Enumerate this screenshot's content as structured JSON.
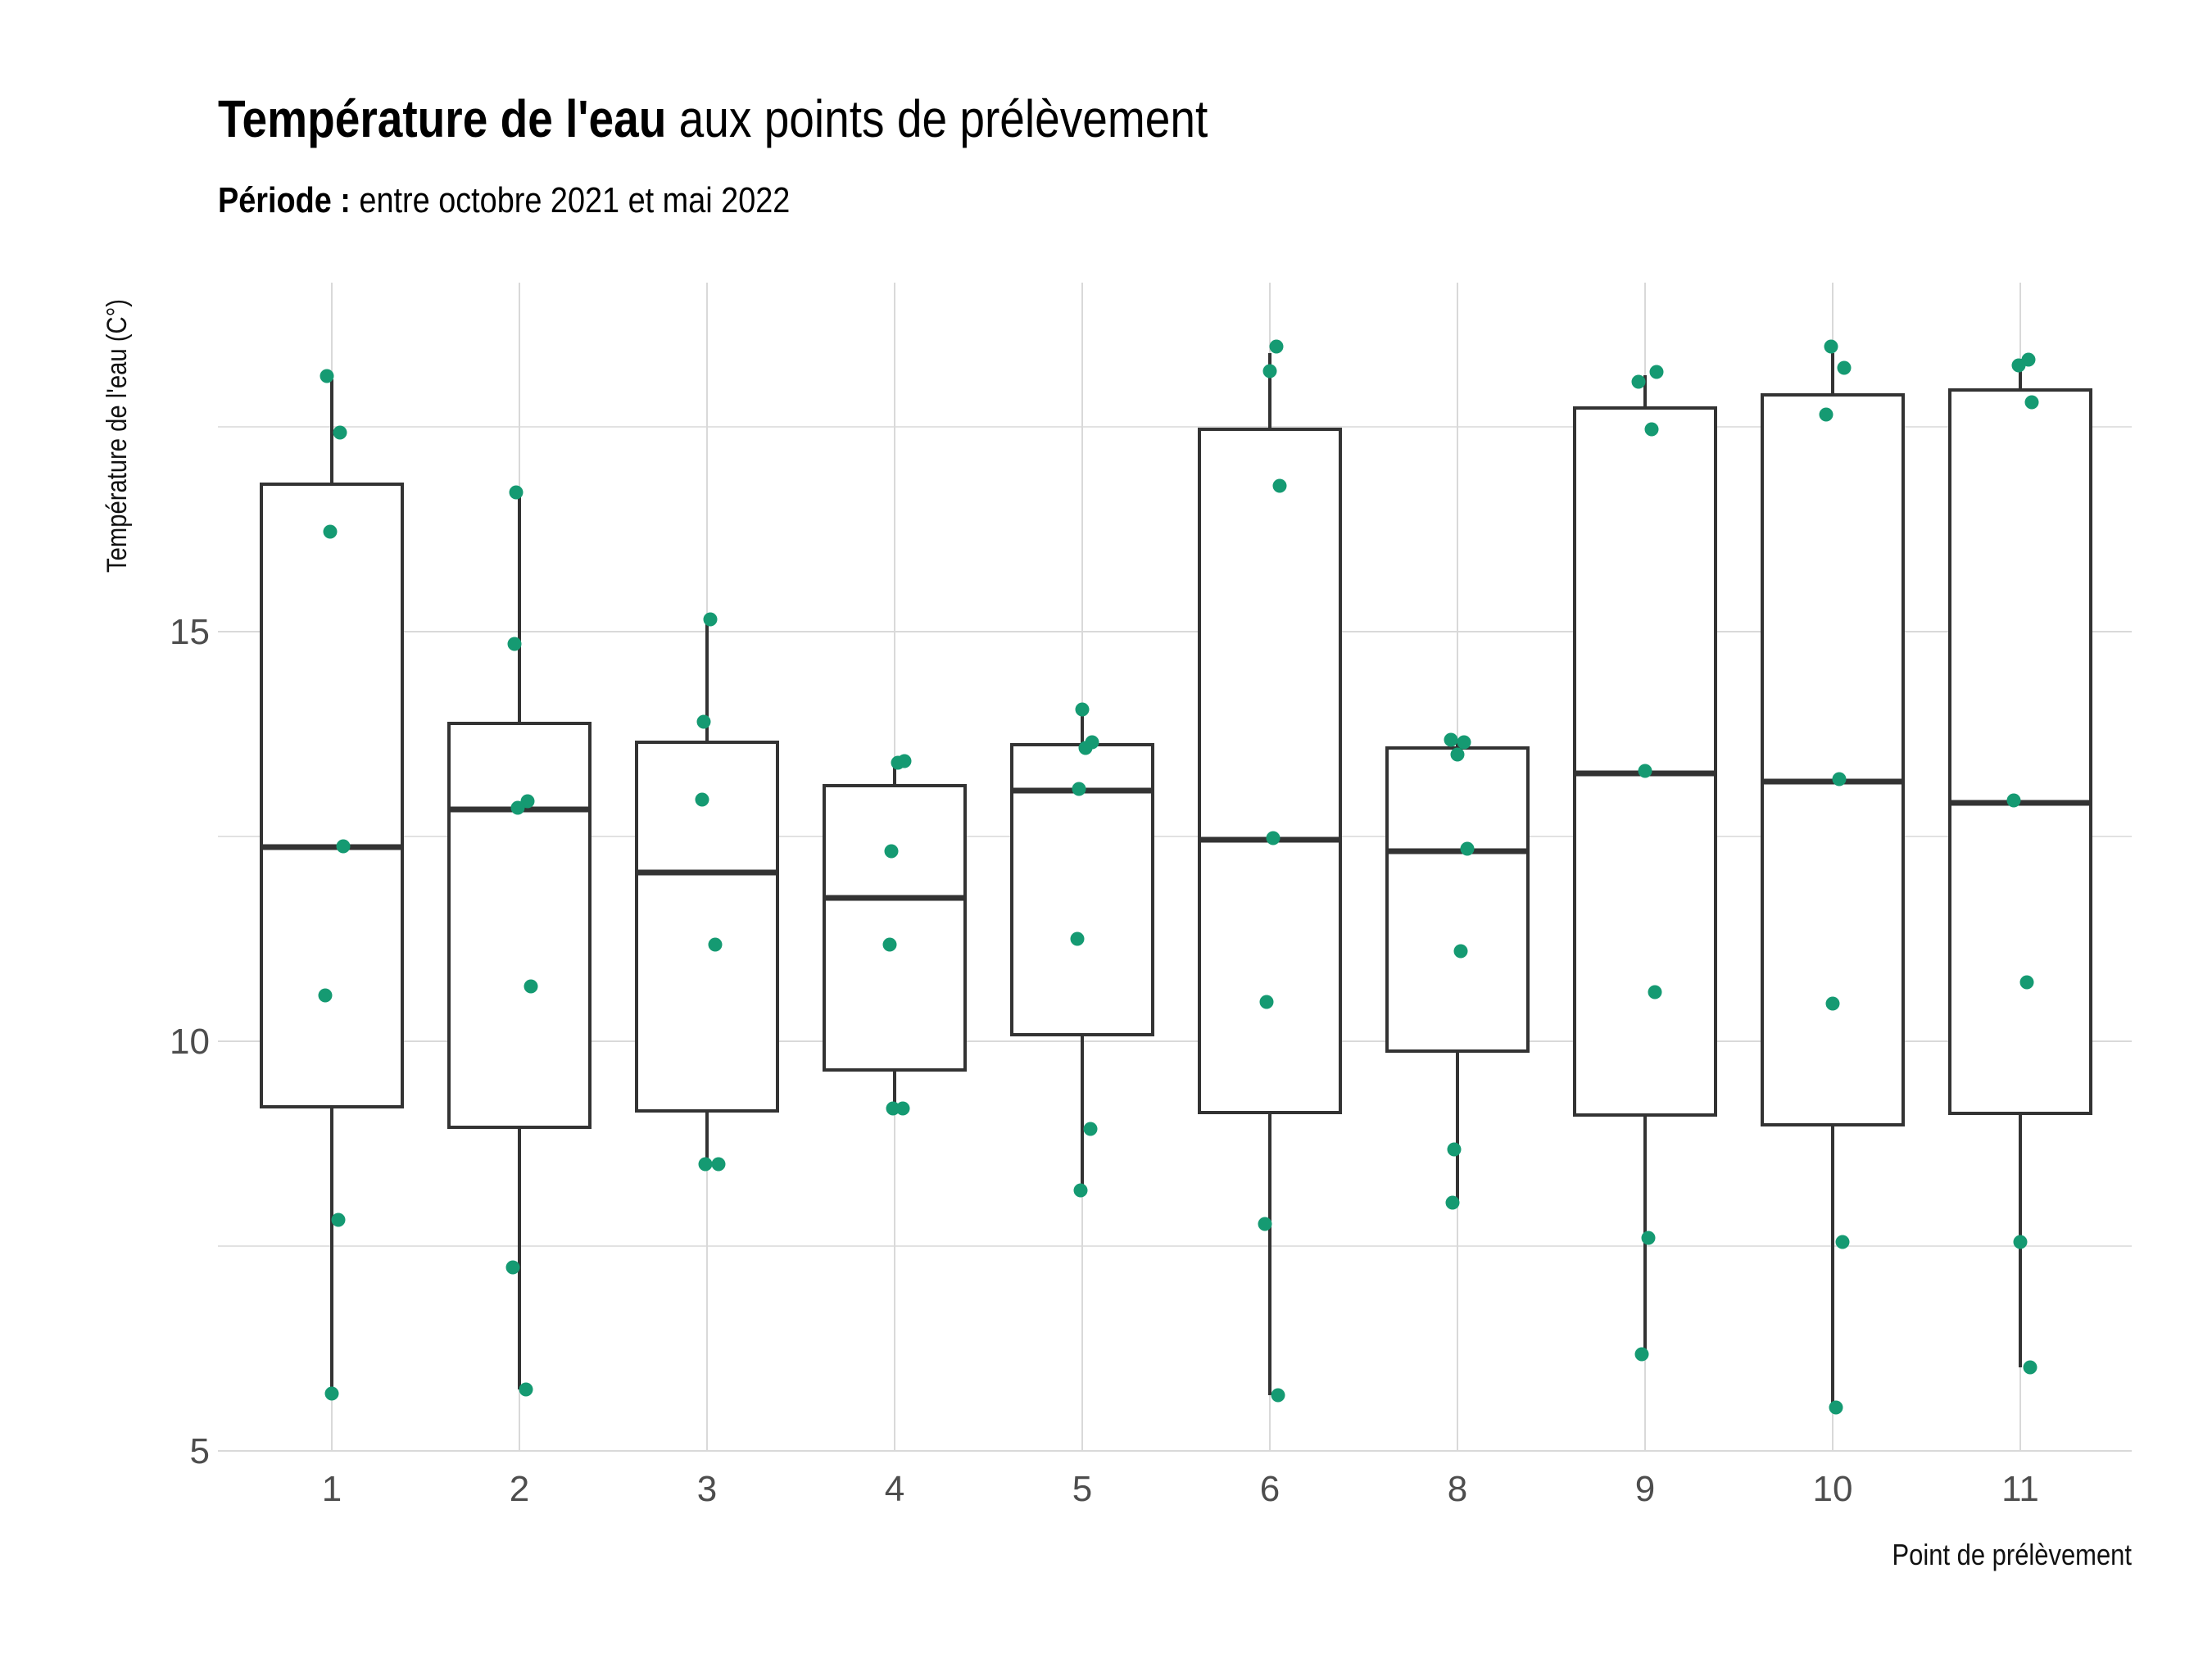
{
  "title": {
    "bold": "Température de l'eau",
    "rest": " aux points de prélèvement"
  },
  "subtitle": {
    "bold": "Période :",
    "rest": " entre octobre 2021 et mai 2022"
  },
  "chart_data": {
    "type": "box",
    "xlabel": "Point de prélèvement",
    "ylabel": "Température de l'eau (C°)",
    "y_ticks": [
      5,
      10,
      15
    ],
    "ylim": [
      5,
      18.9
    ],
    "grid": true,
    "colors": {
      "point": "#159a72",
      "box": "#333333",
      "grid": "#d9d9d9"
    },
    "categories": [
      "1",
      "2",
      "3",
      "4",
      "5",
      "6",
      "8",
      "9",
      "10",
      "11"
    ],
    "boxes": [
      {
        "category": "1",
        "min": 5.7,
        "q1": 9.2,
        "median": 12.37,
        "q3": 16.8,
        "max": 18.08
      },
      {
        "category": "2",
        "min": 5.75,
        "q1": 8.95,
        "median": 12.83,
        "q3": 13.88,
        "max": 16.7
      },
      {
        "category": "3",
        "min": 8.5,
        "q1": 9.15,
        "median": 12.06,
        "q3": 13.65,
        "max": 15.12
      },
      {
        "category": "4",
        "min": 9.18,
        "q1": 9.65,
        "median": 11.75,
        "q3": 13.12,
        "max": 13.4
      },
      {
        "category": "5",
        "min": 8.18,
        "q1": 10.08,
        "median": 13.06,
        "q3": 13.62,
        "max": 14.05
      },
      {
        "category": "6",
        "min": 5.68,
        "q1": 9.13,
        "median": 12.46,
        "q3": 17.47,
        "max": 18.4
      },
      {
        "category": "8",
        "min": 8.03,
        "q1": 9.88,
        "median": 12.32,
        "q3": 13.58,
        "max": 13.67
      },
      {
        "category": "9",
        "min": 6.18,
        "q1": 9.1,
        "median": 13.27,
        "q3": 17.73,
        "max": 18.13
      },
      {
        "category": "10",
        "min": 5.53,
        "q1": 8.98,
        "median": 13.17,
        "q3": 17.89,
        "max": 18.4
      },
      {
        "category": "11",
        "min": 6.02,
        "q1": 9.12,
        "median": 12.91,
        "q3": 17.95,
        "max": 18.33
      }
    ],
    "points": [
      {
        "category": "1",
        "values": [
          18.12,
          17.43,
          16.22,
          12.38,
          10.56,
          7.82,
          5.7
        ]
      },
      {
        "category": "2",
        "values": [
          16.7,
          14.85,
          12.93,
          12.85,
          10.67,
          7.24,
          5.75
        ]
      },
      {
        "category": "3",
        "values": [
          15.15,
          13.9,
          12.95,
          11.18,
          8.5,
          8.5
        ]
      },
      {
        "category": "4",
        "values": [
          13.42,
          13.4,
          12.32,
          11.18,
          9.18,
          9.18
        ]
      },
      {
        "category": "5",
        "values": [
          14.05,
          13.65,
          13.58,
          13.08,
          11.25,
          8.93,
          8.18
        ]
      },
      {
        "category": "6",
        "values": [
          18.48,
          18.18,
          16.78,
          12.48,
          10.48,
          7.77,
          5.68
        ]
      },
      {
        "category": "8",
        "values": [
          13.68,
          13.65,
          13.5,
          12.35,
          11.1,
          8.68,
          8.03
        ]
      },
      {
        "category": "9",
        "values": [
          18.17,
          18.05,
          17.47,
          13.3,
          10.6,
          7.6,
          6.18
        ]
      },
      {
        "category": "10",
        "values": [
          18.48,
          18.22,
          17.65,
          13.2,
          10.46,
          7.55,
          5.53
        ]
      },
      {
        "category": "11",
        "values": [
          18.32,
          18.25,
          17.8,
          12.94,
          10.72,
          7.55,
          6.02
        ]
      }
    ]
  }
}
